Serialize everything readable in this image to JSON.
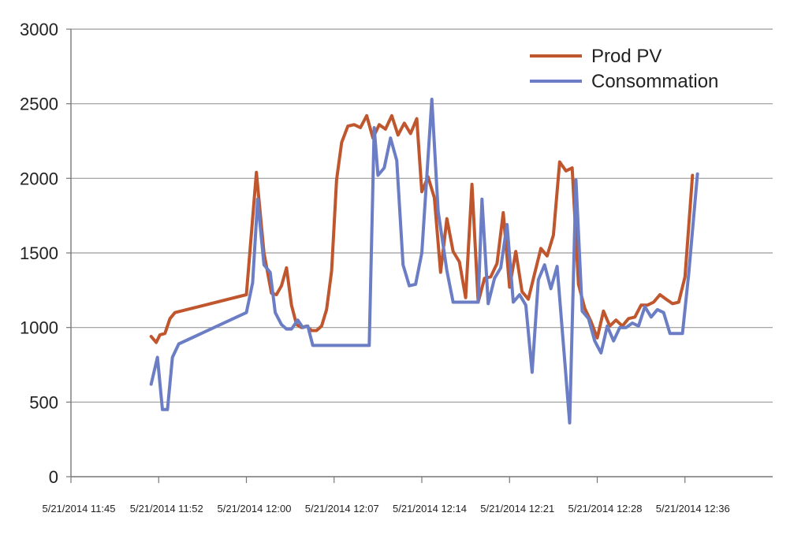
{
  "chart_data": {
    "type": "line",
    "title": "",
    "xlabel": "",
    "ylabel": "",
    "ylim": [
      0,
      3000
    ],
    "yticks": [
      "0",
      "500",
      "1000",
      "1500",
      "2000",
      "2500",
      "3000"
    ],
    "xlim_minutes": [
      0,
      56
    ],
    "xticks": [
      {
        "label": "5/21/2014 11:45",
        "minute": 0
      },
      {
        "label": "5/21/2014 11:52",
        "minute": 7
      },
      {
        "label": "5/21/2014 12:00",
        "minute": 14
      },
      {
        "label": "5/21/2014 12:07",
        "minute": 21
      },
      {
        "label": "5/21/2014 12:14",
        "minute": 28
      },
      {
        "label": "5/21/2014 12:21",
        "minute": 35
      },
      {
        "label": "5/21/2014 12:28",
        "minute": 42
      },
      {
        "label": "5/21/2014 12:36",
        "minute": 49
      }
    ],
    "grid": "horizontal",
    "legend_position": "top-right",
    "series": [
      {
        "name": "Prod PV",
        "color": "#c0562d",
        "points": [
          [
            6.4,
            940
          ],
          [
            6.8,
            900
          ],
          [
            7.1,
            950
          ],
          [
            7.5,
            960
          ],
          [
            7.9,
            1060
          ],
          [
            8.3,
            1100
          ],
          [
            14.0,
            1220
          ],
          [
            14.8,
            2040
          ],
          [
            15.4,
            1500
          ],
          [
            16.0,
            1230
          ],
          [
            16.4,
            1220
          ],
          [
            16.8,
            1280
          ],
          [
            17.2,
            1400
          ],
          [
            17.6,
            1150
          ],
          [
            18.0,
            1020
          ],
          [
            18.4,
            1000
          ],
          [
            18.8,
            1010
          ],
          [
            19.2,
            980
          ],
          [
            19.6,
            980
          ],
          [
            20.0,
            1010
          ],
          [
            20.4,
            1120
          ],
          [
            20.8,
            1380
          ],
          [
            21.2,
            1990
          ],
          [
            21.6,
            2240
          ],
          [
            22.1,
            2350
          ],
          [
            22.6,
            2360
          ],
          [
            23.1,
            2340
          ],
          [
            23.6,
            2420
          ],
          [
            24.1,
            2270
          ],
          [
            24.6,
            2360
          ],
          [
            25.1,
            2330
          ],
          [
            25.6,
            2420
          ],
          [
            26.1,
            2290
          ],
          [
            26.6,
            2370
          ],
          [
            27.1,
            2300
          ],
          [
            27.6,
            2400
          ],
          [
            28.0,
            1910
          ],
          [
            28.5,
            2010
          ],
          [
            29.0,
            1870
          ],
          [
            29.5,
            1370
          ],
          [
            30.0,
            1730
          ],
          [
            30.5,
            1510
          ],
          [
            31.0,
            1440
          ],
          [
            31.5,
            1200
          ],
          [
            32.0,
            1960
          ],
          [
            32.5,
            1170
          ],
          [
            33.0,
            1330
          ],
          [
            33.5,
            1340
          ],
          [
            34.0,
            1430
          ],
          [
            34.5,
            1770
          ],
          [
            35.0,
            1270
          ],
          [
            35.5,
            1510
          ],
          [
            36.0,
            1240
          ],
          [
            36.5,
            1190
          ],
          [
            37.0,
            1360
          ],
          [
            37.5,
            1530
          ],
          [
            38.0,
            1480
          ],
          [
            38.5,
            1620
          ],
          [
            39.0,
            2110
          ],
          [
            39.5,
            2050
          ],
          [
            40.0,
            2070
          ],
          [
            40.5,
            1290
          ],
          [
            41.0,
            1130
          ],
          [
            41.5,
            1040
          ],
          [
            42.0,
            930
          ],
          [
            42.5,
            1110
          ],
          [
            43.0,
            1010
          ],
          [
            43.5,
            1050
          ],
          [
            44.0,
            1010
          ],
          [
            44.5,
            1060
          ],
          [
            45.0,
            1070
          ],
          [
            45.5,
            1150
          ],
          [
            46.0,
            1150
          ],
          [
            46.5,
            1170
          ],
          [
            47.0,
            1220
          ],
          [
            47.5,
            1190
          ],
          [
            48.0,
            1160
          ],
          [
            48.5,
            1170
          ],
          [
            49.0,
            1340
          ],
          [
            49.6,
            2020
          ]
        ]
      },
      {
        "name": "Consommation",
        "color": "#6b7dc4",
        "points": [
          [
            6.4,
            620
          ],
          [
            6.9,
            800
          ],
          [
            7.3,
            450
          ],
          [
            7.7,
            450
          ],
          [
            8.1,
            800
          ],
          [
            8.6,
            890
          ],
          [
            14.0,
            1100
          ],
          [
            14.5,
            1300
          ],
          [
            14.9,
            1860
          ],
          [
            15.4,
            1420
          ],
          [
            15.9,
            1370
          ],
          [
            16.3,
            1100
          ],
          [
            16.8,
            1020
          ],
          [
            17.2,
            990
          ],
          [
            17.6,
            990
          ],
          [
            18.1,
            1050
          ],
          [
            18.5,
            1000
          ],
          [
            18.9,
            1010
          ],
          [
            19.3,
            880
          ],
          [
            23.8,
            880
          ],
          [
            24.2,
            2340
          ],
          [
            24.5,
            2020
          ],
          [
            25.0,
            2070
          ],
          [
            25.5,
            2270
          ],
          [
            26.0,
            2120
          ],
          [
            26.5,
            1420
          ],
          [
            27.0,
            1280
          ],
          [
            27.5,
            1290
          ],
          [
            28.0,
            1500
          ],
          [
            28.8,
            2530
          ],
          [
            29.3,
            1780
          ],
          [
            30.0,
            1380
          ],
          [
            30.5,
            1170
          ],
          [
            32.5,
            1170
          ],
          [
            32.8,
            1860
          ],
          [
            33.3,
            1160
          ],
          [
            33.8,
            1330
          ],
          [
            34.3,
            1400
          ],
          [
            34.8,
            1690
          ],
          [
            35.3,
            1170
          ],
          [
            35.8,
            1220
          ],
          [
            36.3,
            1150
          ],
          [
            36.8,
            700
          ],
          [
            37.3,
            1320
          ],
          [
            37.8,
            1420
          ],
          [
            38.3,
            1260
          ],
          [
            38.8,
            1410
          ],
          [
            39.4,
            780
          ],
          [
            39.8,
            360
          ],
          [
            40.3,
            1990
          ],
          [
            40.8,
            1110
          ],
          [
            41.3,
            1060
          ],
          [
            41.8,
            910
          ],
          [
            42.3,
            830
          ],
          [
            42.8,
            1010
          ],
          [
            43.3,
            910
          ],
          [
            43.8,
            1000
          ],
          [
            44.3,
            1000
          ],
          [
            44.8,
            1030
          ],
          [
            45.3,
            1010
          ],
          [
            45.8,
            1140
          ],
          [
            46.3,
            1070
          ],
          [
            46.8,
            1120
          ],
          [
            47.3,
            1100
          ],
          [
            47.8,
            960
          ],
          [
            48.3,
            960
          ],
          [
            48.8,
            960
          ],
          [
            49.3,
            1360
          ],
          [
            50.0,
            2030
          ]
        ]
      }
    ]
  }
}
